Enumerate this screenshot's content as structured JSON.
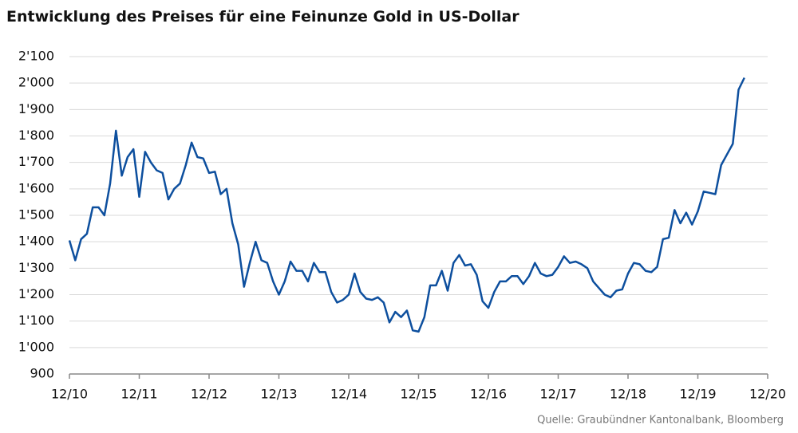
{
  "chart_data": {
    "type": "line",
    "title": "Entwicklung des Preises für eine Feinunze Gold in US-Dollar",
    "source": "Quelle: Graubündner Kantonalbank, Bloomberg",
    "x": [
      "12/10",
      "01/11",
      "02/11",
      "03/11",
      "04/11",
      "05/11",
      "06/11",
      "07/11",
      "08/11",
      "09/11",
      "10/11",
      "11/11",
      "12/11",
      "01/12",
      "02/12",
      "03/12",
      "04/12",
      "05/12",
      "06/12",
      "07/12",
      "08/12",
      "09/12",
      "10/12",
      "11/12",
      "12/12",
      "01/13",
      "02/13",
      "03/13",
      "04/13",
      "05/13",
      "06/13",
      "07/13",
      "08/13",
      "09/13",
      "10/13",
      "11/13",
      "12/13",
      "01/14",
      "02/14",
      "03/14",
      "04/14",
      "05/14",
      "06/14",
      "07/14",
      "08/14",
      "09/14",
      "10/14",
      "11/14",
      "12/14",
      "01/15",
      "02/15",
      "03/15",
      "04/15",
      "05/15",
      "06/15",
      "07/15",
      "08/15",
      "09/15",
      "10/15",
      "11/15",
      "12/15",
      "01/16",
      "02/16",
      "03/16",
      "04/16",
      "05/16",
      "06/16",
      "07/16",
      "08/16",
      "09/16",
      "10/16",
      "11/16",
      "12/16",
      "01/17",
      "02/17",
      "03/17",
      "04/17",
      "05/17",
      "06/17",
      "07/17",
      "08/17",
      "09/17",
      "10/17",
      "11/17",
      "12/17",
      "01/18",
      "02/18",
      "03/18",
      "04/18",
      "05/18",
      "06/18",
      "07/18",
      "08/18",
      "09/18",
      "10/18",
      "11/18",
      "12/18",
      "01/19",
      "02/19",
      "03/19",
      "04/19",
      "05/19",
      "06/19",
      "07/19",
      "08/19",
      "09/19",
      "10/19",
      "11/19",
      "12/19",
      "01/20",
      "02/20",
      "03/20",
      "04/20",
      "05/20",
      "06/20",
      "07/20",
      "08/20"
    ],
    "series": [
      {
        "name": "Gold",
        "color": "#0d4f9e",
        "values": [
          1405,
          1330,
          1410,
          1430,
          1530,
          1530,
          1500,
          1620,
          1820,
          1650,
          1720,
          1750,
          1570,
          1740,
          1700,
          1670,
          1660,
          1560,
          1600,
          1620,
          1690,
          1775,
          1720,
          1715,
          1660,
          1665,
          1580,
          1600,
          1470,
          1390,
          1230,
          1320,
          1400,
          1330,
          1320,
          1250,
          1200,
          1250,
          1325,
          1290,
          1290,
          1250,
          1320,
          1285,
          1285,
          1210,
          1170,
          1180,
          1200,
          1280,
          1210,
          1185,
          1180,
          1190,
          1170,
          1095,
          1135,
          1115,
          1140,
          1065,
          1060,
          1115,
          1235,
          1235,
          1290,
          1215,
          1320,
          1350,
          1310,
          1315,
          1275,
          1175,
          1150,
          1210,
          1250,
          1250,
          1270,
          1270,
          1240,
          1270,
          1320,
          1280,
          1270,
          1275,
          1305,
          1345,
          1320,
          1325,
          1315,
          1300,
          1250,
          1225,
          1200,
          1190,
          1215,
          1220,
          1280,
          1320,
          1315,
          1290,
          1285,
          1305,
          1410,
          1415,
          1520,
          1470,
          1510,
          1465,
          1515,
          1590,
          1585,
          1580,
          1690,
          1730,
          1770,
          1975,
          2020
        ]
      }
    ],
    "xlim": [
      "12/10",
      "12/20"
    ],
    "xticks": [
      "12/10",
      "12/11",
      "12/12",
      "12/13",
      "12/14",
      "12/15",
      "12/16",
      "12/17",
      "12/18",
      "12/19",
      "12/20"
    ],
    "ylim": [
      900,
      2100
    ],
    "yticks": [
      {
        "value": 900,
        "label": "900"
      },
      {
        "value": 1000,
        "label": "1'000"
      },
      {
        "value": 1100,
        "label": "1'100"
      },
      {
        "value": 1200,
        "label": "1'200"
      },
      {
        "value": 1300,
        "label": "1'300"
      },
      {
        "value": 1400,
        "label": "1'400"
      },
      {
        "value": 1500,
        "label": "1'500"
      },
      {
        "value": 1600,
        "label": "1'600"
      },
      {
        "value": 1700,
        "label": "1'700"
      },
      {
        "value": 1800,
        "label": "1'800"
      },
      {
        "value": 1900,
        "label": "1'900"
      },
      {
        "value": 2000,
        "label": "2'000"
      },
      {
        "value": 2100,
        "label": "2'100"
      }
    ],
    "grid": true
  }
}
